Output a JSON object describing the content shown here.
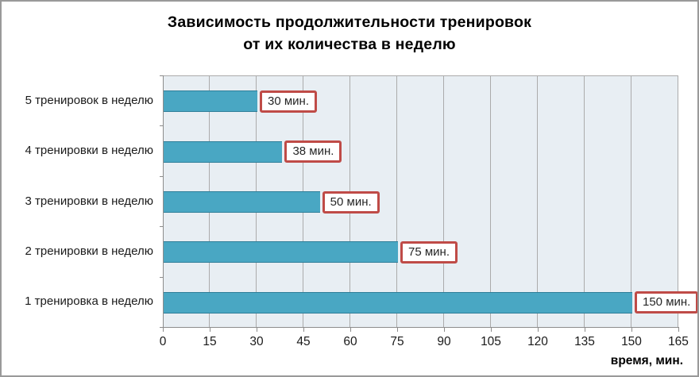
{
  "title": {
    "line1": "Зависимость продолжительности тренировок",
    "line2": "от их количества в неделю"
  },
  "chart_data": {
    "type": "bar",
    "orientation": "horizontal",
    "title": "Зависимость продолжительности тренировок от их количества в неделю",
    "categories": [
      "5 тренировок в неделю",
      "4 тренировки в неделю",
      "3 тренировки в неделю",
      "2 тренировки в неделю",
      "1 тренировка в неделю"
    ],
    "values": [
      30,
      38,
      50,
      75,
      150
    ],
    "value_labels": [
      "30 мин.",
      "38 мин.",
      "50 мин.",
      "75 мин.",
      "150 мин."
    ],
    "xlabel": "время, мин.",
    "ylabel": "",
    "xlim": [
      0,
      165
    ],
    "x_ticks": [
      0,
      15,
      30,
      45,
      60,
      75,
      90,
      105,
      120,
      135,
      150,
      165
    ],
    "grid": "vertical",
    "legend": "none",
    "colors": {
      "bar_fill": "#49A7C3",
      "bar_border": "#2E7E99",
      "plot_background": "#E8EEF3",
      "gridline": "#ABABAB",
      "axis_line": "#8C8C8C",
      "label_box_border": "#BF4B47",
      "label_box_fill": "#FFFFFF",
      "frame_border": "#999999"
    }
  }
}
